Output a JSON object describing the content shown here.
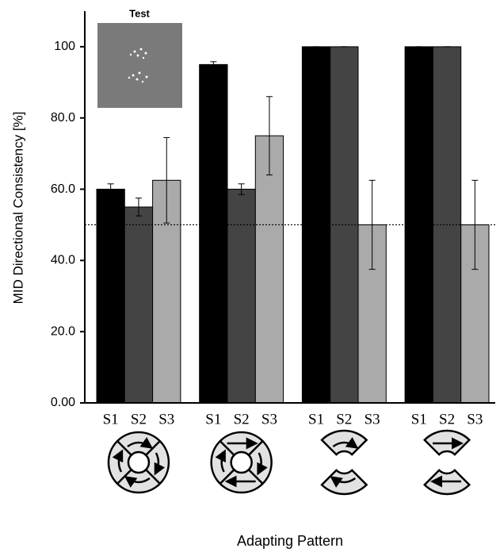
{
  "chart_data": {
    "type": "bar",
    "inset_title": "Test",
    "y_label": "MID Directional Consistency [%]",
    "x_label": "Adapting Pattern",
    "categories": [
      null,
      null,
      null,
      null
    ],
    "series": [
      {
        "name": "S1",
        "color": "#000000",
        "values": [
          60,
          95,
          100,
          100
        ],
        "errors": [
          1.5,
          0.8,
          0,
          0
        ]
      },
      {
        "name": "S2",
        "color": "#444444",
        "values": [
          55,
          60,
          100,
          100
        ],
        "errors": [
          2.5,
          1.5,
          0,
          0
        ]
      },
      {
        "name": "S3",
        "color": "#aaaaaa",
        "values": [
          62.5,
          75,
          50,
          50
        ],
        "errors": [
          12,
          11,
          12.5,
          12.5
        ]
      }
    ],
    "ylim": [
      0,
      110
    ],
    "yticks": [
      {
        "value": 0,
        "label": "0.00"
      },
      {
        "value": 20,
        "label": "20.0"
      },
      {
        "value": 40,
        "label": "40.0"
      },
      {
        "value": 60,
        "label": "60.0"
      },
      {
        "value": 80,
        "label": "80.0"
      },
      100
    ],
    "reference_line": 50
  }
}
